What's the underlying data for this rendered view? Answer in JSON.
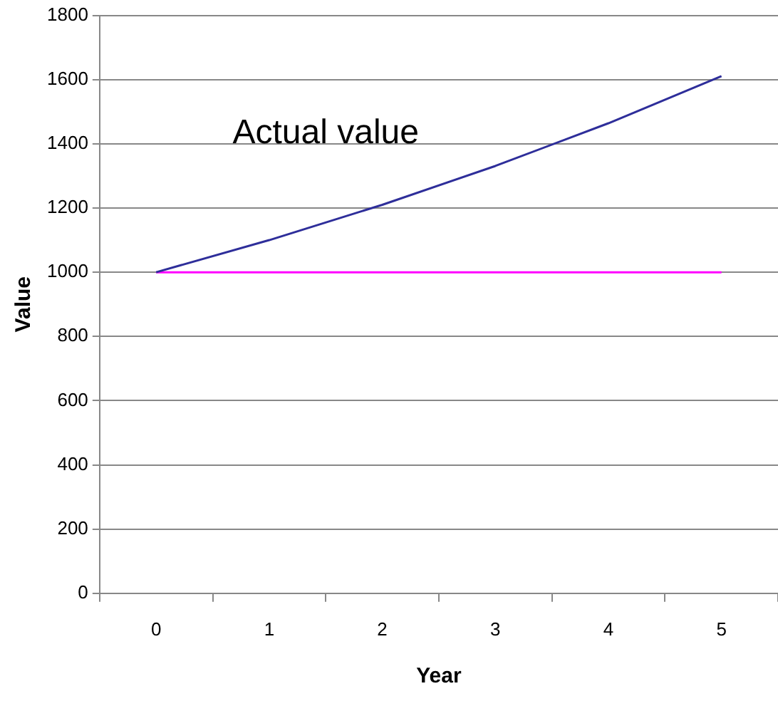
{
  "chart_data": {
    "type": "line",
    "xlabel": "Year",
    "ylabel": "Value",
    "categories": [
      "0",
      "1",
      "2",
      "3",
      "4",
      "5"
    ],
    "series": [
      {
        "name": "Actual value",
        "color": "#2e2e9a",
        "values": [
          1000,
          1100,
          1210,
          1331,
          1464,
          1611
        ]
      },
      {
        "color": "#ff00ff",
        "values": [
          1000,
          1000,
          1000,
          1000,
          1000,
          1000
        ]
      }
    ],
    "ylim": [
      0,
      1800
    ],
    "yticks": [
      0,
      200,
      400,
      600,
      800,
      1000,
      1200,
      1400,
      1600,
      1800
    ],
    "grid": "y",
    "legend": false,
    "marker": "none",
    "line_style": "solid"
  }
}
